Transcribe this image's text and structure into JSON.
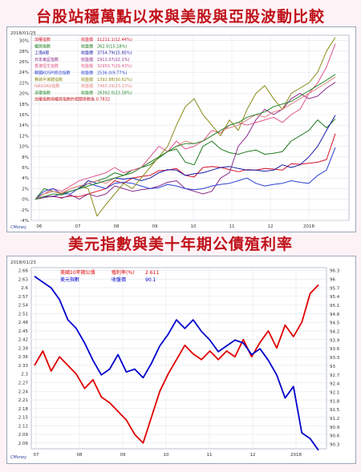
{
  "titles": {
    "top": "台股站穩萬點以來與美股與亞股波動比較",
    "bottom": "美元指數與美十年期公債殖利率"
  },
  "chart_data": [
    {
      "type": "line",
      "date_label": "2018/01/25",
      "brand": "CMoney",
      "x_ticks": [
        "06",
        "07",
        "08",
        "09",
        "10",
        "11",
        "12",
        "2018"
      ],
      "y_ticks": [
        "-4%",
        "-2%",
        "0%",
        "2%",
        "4%",
        "6%",
        "8%",
        "10%",
        "12%",
        "14%",
        "16%",
        "18%",
        "20%",
        "22%",
        "24%",
        "26%",
        "28%",
        "30%"
      ],
      "ylim": [
        -4,
        31
      ],
      "legend": [
        {
          "label": "加權指數",
          "value_label": "收盤價",
          "value": "11211.1(12.44%)",
          "color": "#d4142a"
        },
        {
          "label": "櫃買指數",
          "value_label": "收盤價",
          "value": "262.0(15.18%)",
          "color": "#1f7a1f"
        },
        {
          "label": "上海A股",
          "value_label": "收盤價",
          "value": "3754.79(15.85%)",
          "color": "#1a1aa6"
        },
        {
          "label": "日本東証指數",
          "value_label": "收盤價",
          "value": "1911.07(22.1%)",
          "color": "#8a2a8a"
        },
        {
          "label": "香港恒生指數",
          "value_label": "收盤價",
          "value": "32950.7(29.43%)",
          "color": "#e0568a"
        },
        {
          "label": "韓國KOSPI綜合指數",
          "value_label": "收盤價",
          "value": "2536.0(9.77%)",
          "color": "#2b3fd0"
        },
        {
          "label": "費城半導體指數",
          "value_label": "收盤價",
          "value": "1392.88(30.62%)",
          "color": "#8a8a1a"
        },
        {
          "label": "NASDAQ指數",
          "value_label": "收盤價",
          "value": "7460.29(23.13%)",
          "color": "#e08080"
        },
        {
          "label": "道瓊指數",
          "value_label": "收盤價",
          "value": "26392.0(23.58%)",
          "color": "#2a8a2a"
        }
      ],
      "legend_note": "加權指數與櫃買指數的相關係數為 0.7832",
      "note_color": "#c0121a",
      "series": [
        {
          "name": "加權指數",
          "color": "#d4142a",
          "values": [
            0,
            0.5,
            0.5,
            0.3,
            0.6,
            0.5,
            1,
            1.5,
            2,
            3.5,
            3,
            4,
            4.3,
            4.5,
            5.4,
            5.5,
            5.8,
            4.5,
            4.2,
            6,
            6.2,
            6,
            5.6,
            5.2,
            5.6,
            5.5,
            5.8,
            5.7,
            5.5,
            6.7,
            6.6,
            6.8,
            7,
            7.5,
            12.4
          ]
        },
        {
          "name": "櫃買指數",
          "color": "#1f7a1f",
          "values": [
            0,
            2,
            1.5,
            1,
            1.5,
            2,
            3,
            3.5,
            4,
            5,
            4.5,
            5.5,
            6,
            6.5,
            7.8,
            9,
            9.5,
            7,
            6.5,
            10,
            11,
            9.5,
            8.8,
            8.5,
            9,
            9.3,
            8.5,
            8.7,
            9,
            11,
            12,
            13,
            15,
            13.5,
            15.2
          ]
        },
        {
          "name": "上海A股",
          "color": "#1a1aa6",
          "values": [
            0,
            0.5,
            0.5,
            1,
            1.5,
            2,
            3.5,
            3,
            3.5,
            4,
            3.8,
            4,
            3.5,
            4,
            5,
            5.6,
            5.5,
            4.5,
            4.8,
            5,
            5.5,
            6,
            6.2,
            5.8,
            5.5,
            5.5,
            5.3,
            5.5,
            6.5,
            6,
            6.5,
            8,
            10,
            13,
            15.9
          ]
        },
        {
          "name": "日本東証指數",
          "color": "#8a2a8a",
          "values": [
            0,
            0.3,
            0.6,
            0.2,
            0.8,
            0,
            1,
            0.5,
            1,
            2.5,
            2,
            1.5,
            1.8,
            2,
            2.5,
            3.2,
            3.5,
            2,
            1.5,
            1,
            1.5,
            4,
            5,
            10,
            12,
            15,
            17,
            16,
            17,
            19,
            20,
            19,
            19.5,
            21,
            22.1
          ]
        },
        {
          "name": "香港恒生指數",
          "color": "#e0568a",
          "values": [
            0,
            1,
            2,
            1.5,
            2.5,
            3.5,
            4,
            4.5,
            5,
            6,
            5,
            5.5,
            6,
            8,
            10,
            9,
            11,
            9.5,
            10,
            11,
            13,
            12.5,
            14,
            14.5,
            14,
            14.5,
            15,
            15.5,
            14.5,
            16,
            17,
            20,
            22,
            25,
            29.4
          ]
        },
        {
          "name": "韓國KOSPI綜合指數",
          "color": "#2b3fd0",
          "values": [
            0,
            1.5,
            2,
            1,
            1,
            2.2,
            3,
            2.5,
            2,
            3,
            3.2,
            3,
            2.5,
            2,
            2.2,
            2.8,
            2.5,
            2,
            1.8,
            2,
            2.5,
            2.8,
            3,
            3.5,
            4,
            3,
            2.5,
            2.8,
            3,
            3.5,
            3.2,
            3,
            4.5,
            5.5,
            9.8
          ]
        },
        {
          "name": "費城半導體指數",
          "color": "#8a8a1a",
          "values": [
            0,
            1,
            1.5,
            1,
            2,
            2.5,
            2,
            -3.2,
            -1,
            1,
            3,
            2,
            4,
            6,
            8,
            10,
            14,
            17.5,
            19,
            16,
            14,
            12,
            15,
            13,
            17,
            20,
            21.5,
            19,
            17,
            20,
            21,
            22,
            24,
            28,
            30.6
          ]
        },
        {
          "name": "NASDAQ指數",
          "color": "#e08080",
          "values": [
            0,
            1,
            1.5,
            1.2,
            2,
            2.5,
            3,
            3.5,
            3,
            4,
            4.5,
            5,
            6,
            7,
            8,
            9,
            10,
            11,
            10.5,
            11,
            12,
            13,
            13.5,
            14,
            15,
            16,
            15.5,
            16.5,
            17,
            18,
            19,
            20,
            21,
            22,
            23.1
          ]
        },
        {
          "name": "道瓊指數",
          "color": "#2a8a2a",
          "values": [
            0,
            0.5,
            1,
            0.8,
            1.5,
            2,
            2.5,
            3,
            3.5,
            4,
            4.5,
            5,
            6,
            7,
            8,
            9,
            10,
            10.5,
            10.5,
            11,
            12,
            13,
            14,
            14.5,
            15.5,
            16,
            16.5,
            17.5,
            18,
            18.5,
            19.5,
            20.5,
            21.5,
            22.5,
            23.6
          ]
        }
      ]
    },
    {
      "type": "line",
      "date_label": "2018/01/23",
      "brand": "CMoney",
      "x_ticks": [
        "07",
        "08",
        "09",
        "10",
        "11",
        "12",
        "2018"
      ],
      "y_left_ticks": [
        "2.06",
        "2.09",
        "2.12",
        "2.15",
        "2.18",
        "2.21",
        "2.24",
        "2.27",
        "2.3",
        "2.33",
        "2.36",
        "2.39",
        "2.42",
        "2.45",
        "2.48",
        "2.51",
        "2.54",
        "2.57",
        "2.6",
        "2.63",
        "2.66"
      ],
      "y_right_ticks": [
        "90.3",
        "90.6",
        "90.9",
        "91.2",
        "91.5",
        "91.8",
        "92.1",
        "92.4",
        "92.7",
        "93",
        "93.3",
        "93.6",
        "93.9",
        "94.2",
        "94.5",
        "94.8",
        "95.1",
        "95.4",
        "95.7",
        "96",
        "96.3"
      ],
      "ylim_left": [
        2.04,
        2.67
      ],
      "ylim_right": [
        90.15,
        96.4
      ],
      "legend": [
        {
          "label": "美國10年期公債",
          "value_label": "殖利率(%)",
          "value": "2.611",
          "color": "#e00000"
        },
        {
          "label": "美元指數",
          "value_label": "收盤價",
          "value": "90.1",
          "color": "#0000cc"
        }
      ],
      "series": [
        {
          "name": "美國10年期公債",
          "axis": "left",
          "color": "#e00000",
          "values": [
            2.33,
            2.38,
            2.31,
            2.36,
            2.33,
            2.3,
            2.25,
            2.28,
            2.22,
            2.2,
            2.17,
            2.14,
            2.09,
            2.06,
            2.15,
            2.24,
            2.3,
            2.35,
            2.4,
            2.37,
            2.35,
            2.38,
            2.35,
            2.38,
            2.36,
            2.42,
            2.36,
            2.41,
            2.45,
            2.39,
            2.47,
            2.43,
            2.48,
            2.58,
            2.61
          ]
        },
        {
          "name": "美元指數",
          "axis": "right",
          "color": "#0000cc",
          "values": [
            96.1,
            95.9,
            95.7,
            95.3,
            94.6,
            94.3,
            93.8,
            93.2,
            92.7,
            92.9,
            93.4,
            92.8,
            92.9,
            92.6,
            93.1,
            93.7,
            94.1,
            94.6,
            94.3,
            94.6,
            94.2,
            93.9,
            93.5,
            93.7,
            93.9,
            93.8,
            93.4,
            93.6,
            93.2,
            92.7,
            91.9,
            92.3,
            90.7,
            90.5,
            90.1
          ]
        }
      ]
    }
  ]
}
